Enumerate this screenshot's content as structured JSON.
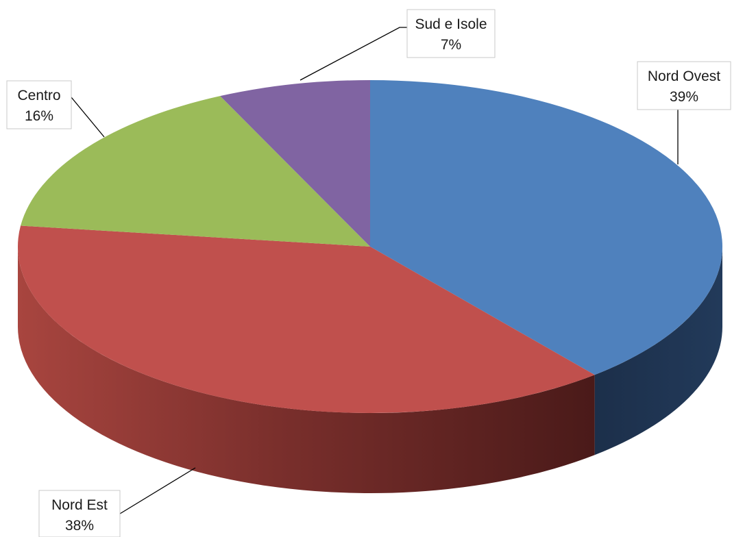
{
  "chart_data": {
    "type": "pie",
    "style": "3d",
    "title": "",
    "slices": [
      {
        "label": "Nord Ovest",
        "value": 39,
        "value_label": "39%",
        "color": "#4f81bd",
        "side_color": "#1f3552"
      },
      {
        "label": "Nord Est",
        "value": 38,
        "value_label": "38%",
        "color": "#c0504d",
        "side_color": "#a64541"
      },
      {
        "label": "Centro",
        "value": 16,
        "value_label": "16%",
        "color": "#9bbb59",
        "side_color": "#6f8a3e"
      },
      {
        "label": "Sud e Isole",
        "value": 7,
        "value_label": "7%",
        "color": "#8064a2",
        "side_color": "#4e3c66"
      }
    ],
    "legend": "none",
    "data_labels": "outside-with-leader-lines"
  }
}
